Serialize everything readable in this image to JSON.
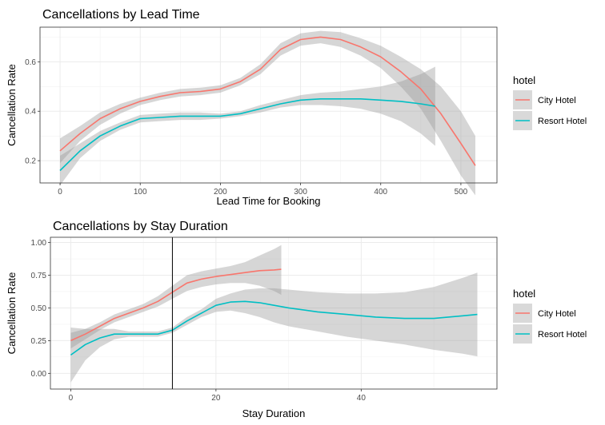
{
  "chart_data": [
    {
      "type": "line",
      "title": "Cancellations by Lead Time",
      "xlabel": "Lead Time for Booking",
      "ylabel": "Cancellation Rate",
      "xlim": [
        -25,
        545
      ],
      "ylim": [
        0.11,
        0.74
      ],
      "xticks": [
        0,
        100,
        200,
        300,
        400,
        500
      ],
      "xtick_labels": [
        "0",
        "100",
        "200",
        "300",
        "400",
        "500"
      ],
      "yticks": [
        0.2,
        0.4,
        0.6
      ],
      "ytick_labels": [
        "0.2",
        "0.4",
        "0.6"
      ],
      "grid": true,
      "legend": {
        "title": "hotel",
        "position": "right"
      },
      "series": [
        {
          "name": "City Hotel",
          "color": "#F8766D",
          "x": [
            0,
            25,
            50,
            75,
            100,
            125,
            150,
            175,
            200,
            225,
            250,
            275,
            300,
            325,
            350,
            375,
            400,
            425,
            450,
            475,
            500,
            518
          ],
          "values": [
            0.24,
            0.31,
            0.37,
            0.41,
            0.44,
            0.46,
            0.475,
            0.48,
            0.49,
            0.52,
            0.57,
            0.65,
            0.69,
            0.7,
            0.69,
            0.66,
            0.62,
            0.56,
            0.49,
            0.39,
            0.27,
            0.18
          ],
          "lower": [
            0.19,
            0.28,
            0.345,
            0.39,
            0.425,
            0.445,
            0.46,
            0.465,
            0.475,
            0.505,
            0.55,
            0.625,
            0.665,
            0.675,
            0.66,
            0.625,
            0.575,
            0.5,
            0.41,
            0.28,
            0.14,
            0.06
          ],
          "upper": [
            0.29,
            0.34,
            0.395,
            0.43,
            0.455,
            0.475,
            0.49,
            0.495,
            0.505,
            0.535,
            0.59,
            0.675,
            0.715,
            0.725,
            0.72,
            0.695,
            0.665,
            0.62,
            0.57,
            0.5,
            0.4,
            0.3
          ]
        },
        {
          "name": "Resort Hotel",
          "color": "#00BFC4",
          "x": [
            0,
            25,
            50,
            75,
            100,
            125,
            150,
            175,
            200,
            225,
            250,
            275,
            300,
            325,
            350,
            375,
            400,
            425,
            450,
            468
          ],
          "values": [
            0.16,
            0.24,
            0.3,
            0.34,
            0.37,
            0.375,
            0.38,
            0.38,
            0.38,
            0.39,
            0.41,
            0.43,
            0.445,
            0.45,
            0.45,
            0.45,
            0.445,
            0.44,
            0.43,
            0.42
          ],
          "lower": [
            0.1,
            0.21,
            0.28,
            0.325,
            0.355,
            0.36,
            0.365,
            0.365,
            0.37,
            0.38,
            0.395,
            0.415,
            0.425,
            0.425,
            0.42,
            0.41,
            0.39,
            0.36,
            0.31,
            0.26
          ],
          "upper": [
            0.22,
            0.27,
            0.32,
            0.355,
            0.385,
            0.39,
            0.395,
            0.395,
            0.39,
            0.4,
            0.425,
            0.445,
            0.465,
            0.475,
            0.48,
            0.49,
            0.5,
            0.52,
            0.55,
            0.58
          ]
        }
      ]
    },
    {
      "type": "line",
      "title": "Cancellations by Stay Duration",
      "xlabel": "Stay Duration",
      "ylabel": "Cancellation Rate",
      "xlim": [
        -2.8,
        58.7
      ],
      "ylim": [
        -0.12,
        1.04
      ],
      "xticks": [
        0,
        20,
        40
      ],
      "xtick_labels": [
        "0",
        "20",
        "40"
      ],
      "yticks": [
        0,
        0.25,
        0.5,
        0.75,
        1.0
      ],
      "ytick_labels": [
        "0.00",
        "0.25",
        "0.50",
        "0.75",
        "1.00"
      ],
      "grid": true,
      "vline_x": 14,
      "legend": {
        "title": "hotel",
        "position": "right"
      },
      "series": [
        {
          "name": "City Hotel",
          "color": "#F8766D",
          "x": [
            0,
            2,
            4,
            6,
            8,
            10,
            12,
            14,
            16,
            18,
            20,
            22,
            24,
            26,
            28,
            29
          ],
          "values": [
            0.25,
            0.3,
            0.36,
            0.42,
            0.46,
            0.5,
            0.55,
            0.62,
            0.69,
            0.72,
            0.74,
            0.755,
            0.77,
            0.785,
            0.79,
            0.795
          ],
          "lower": [
            0.19,
            0.26,
            0.33,
            0.39,
            0.43,
            0.47,
            0.51,
            0.57,
            0.63,
            0.66,
            0.68,
            0.69,
            0.69,
            0.67,
            0.63,
            0.6
          ],
          "upper": [
            0.31,
            0.34,
            0.39,
            0.45,
            0.49,
            0.53,
            0.59,
            0.67,
            0.75,
            0.78,
            0.8,
            0.82,
            0.85,
            0.9,
            0.95,
            0.98
          ]
        },
        {
          "name": "Resort Hotel",
          "color": "#00BFC4",
          "x": [
            0,
            2,
            4,
            6,
            8,
            10,
            12,
            14,
            16,
            18,
            20,
            22,
            24,
            26,
            28,
            30,
            34,
            38,
            42,
            46,
            50,
            54,
            56
          ],
          "values": [
            0.14,
            0.22,
            0.27,
            0.3,
            0.3,
            0.3,
            0.3,
            0.33,
            0.4,
            0.46,
            0.52,
            0.545,
            0.55,
            0.54,
            0.52,
            0.5,
            0.47,
            0.45,
            0.43,
            0.42,
            0.42,
            0.44,
            0.45
          ],
          "lower": [
            -0.07,
            0.1,
            0.2,
            0.26,
            0.28,
            0.28,
            0.28,
            0.31,
            0.37,
            0.43,
            0.47,
            0.48,
            0.46,
            0.43,
            0.39,
            0.36,
            0.32,
            0.28,
            0.25,
            0.22,
            0.18,
            0.15,
            0.13
          ],
          "upper": [
            0.35,
            0.34,
            0.34,
            0.34,
            0.32,
            0.32,
            0.32,
            0.35,
            0.43,
            0.49,
            0.57,
            0.61,
            0.64,
            0.65,
            0.65,
            0.64,
            0.62,
            0.61,
            0.61,
            0.62,
            0.66,
            0.73,
            0.77
          ]
        }
      ]
    }
  ]
}
